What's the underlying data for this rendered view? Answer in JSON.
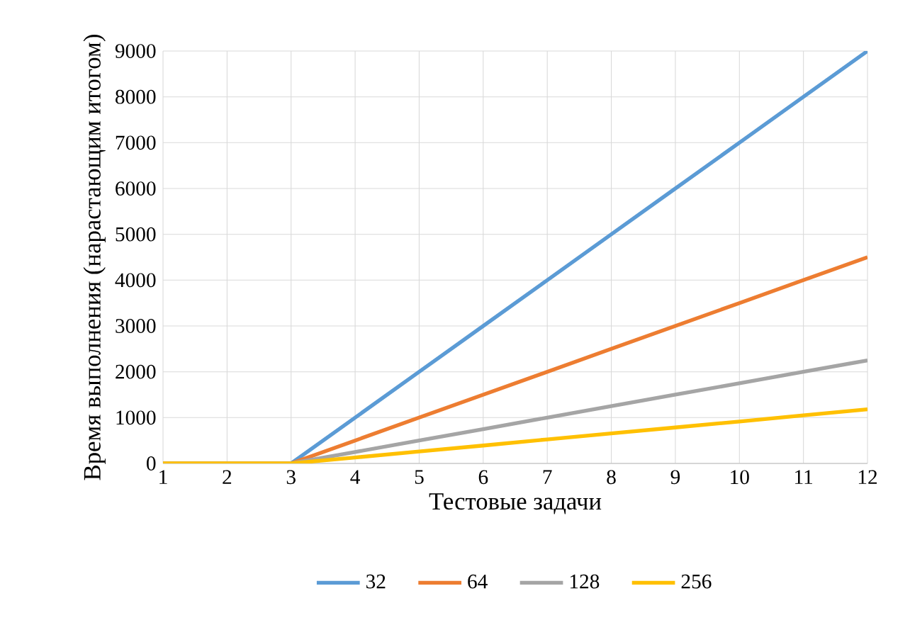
{
  "chart_data": {
    "type": "line",
    "xlabel": "Тестовые задачи",
    "ylabel": "Время выполнения (нарастающим итогом)",
    "x": [
      1,
      2,
      3,
      4,
      5,
      6,
      7,
      8,
      9,
      10,
      11,
      12
    ],
    "series": [
      {
        "name": "32",
        "color": "#5b9bd5",
        "values": [
          0,
          0,
          0,
          1000,
          2000,
          3000,
          4000,
          5000,
          6000,
          7000,
          8000,
          9000
        ]
      },
      {
        "name": "64",
        "color": "#ed7d31",
        "values": [
          0,
          0,
          0,
          500,
          1000,
          1500,
          2000,
          2500,
          3000,
          3500,
          4000,
          4500
        ]
      },
      {
        "name": "128",
        "color": "#a5a5a5",
        "values": [
          0,
          0,
          0,
          250,
          500,
          750,
          1000,
          1250,
          1500,
          1750,
          2000,
          2250
        ]
      },
      {
        "name": "256",
        "color": "#ffc000",
        "values": [
          0,
          0,
          0,
          130,
          260,
          390,
          525,
          655,
          785,
          915,
          1050,
          1180
        ]
      }
    ],
    "xlim": [
      1,
      12
    ],
    "xticks": [
      1,
      2,
      3,
      4,
      5,
      6,
      7,
      8,
      9,
      10,
      11,
      12
    ],
    "ylim": [
      0,
      9000
    ],
    "yticks": [
      0,
      1000,
      2000,
      3000,
      4000,
      5000,
      6000,
      7000,
      8000,
      9000
    ],
    "grid": true,
    "legend": "bottom",
    "marker": "none",
    "line_style": "solid"
  }
}
